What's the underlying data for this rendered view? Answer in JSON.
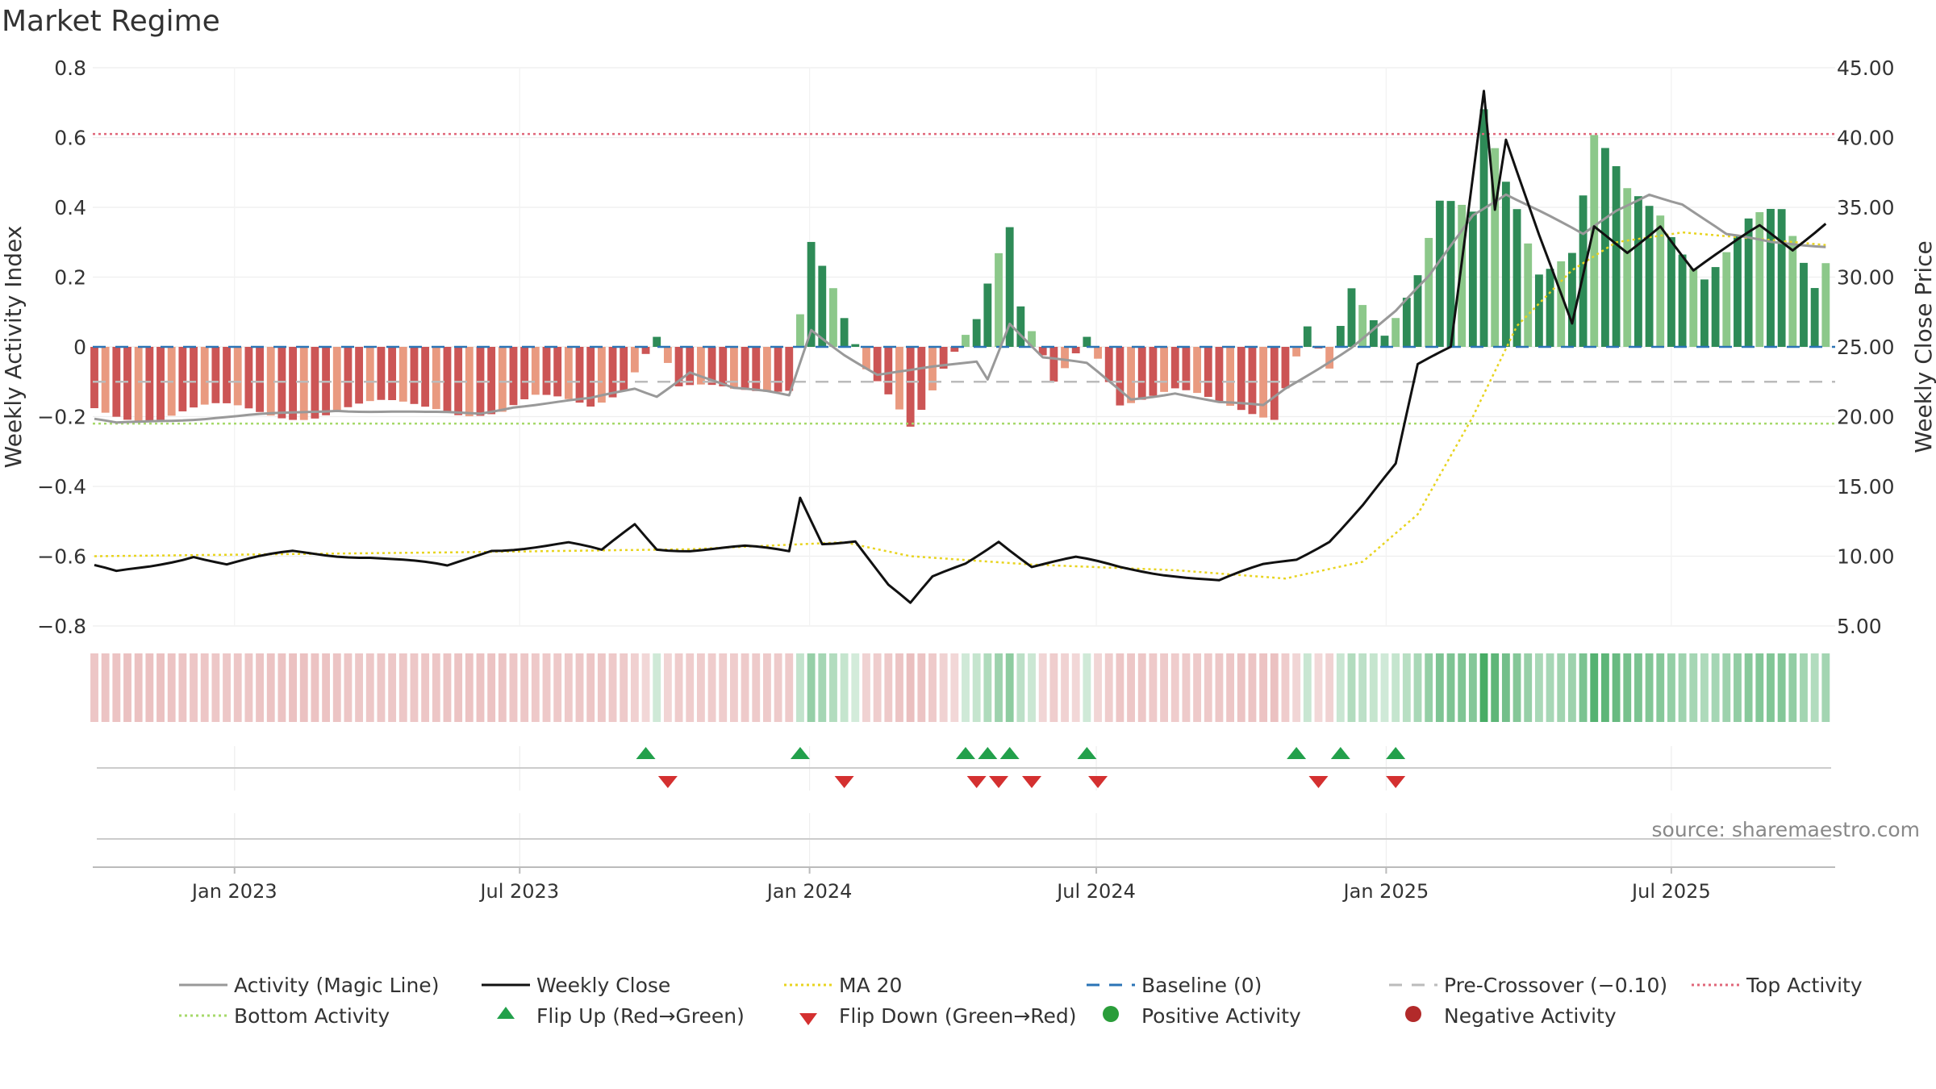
{
  "title": "Market Regime",
  "source": "source: sharemaestro.com",
  "colors": {
    "activity": "#999999",
    "close": "#111111",
    "ma": "#e8d420",
    "baseline": "#2b74b6",
    "precross": "#bbbbbb",
    "top": "#e0677a",
    "bottom": "#a6d96a",
    "pos_strong": "#2e8b57",
    "pos_light": "#8cc88a",
    "neg_strong": "#cc5555",
    "neg_light": "#e99a80",
    "flip_up": "#22a04b",
    "flip_down": "#d43030",
    "pos_dot": "#2a9d3a",
    "neg_dot": "#b22a2a"
  },
  "legend": [
    {
      "label": "Activity (Magic Line)",
      "icon": "solid-gray-line"
    },
    {
      "label": "Weekly Close",
      "icon": "solid-black-line"
    },
    {
      "label": "MA 20",
      "icon": "dotted-yellow-line"
    },
    {
      "label": "Baseline (0)",
      "icon": "dashed-blue-line"
    },
    {
      "label": "Pre-Crossover (−0.10)",
      "icon": "dashed-gray-line"
    },
    {
      "label": "Top Activity",
      "icon": "dotted-pink-line"
    },
    {
      "label": "Bottom Activity",
      "icon": "dotted-green-line"
    },
    {
      "label": "Flip Up (Red→Green)",
      "icon": "green-triangle-up"
    },
    {
      "label": "Flip Down (Green→Red)",
      "icon": "red-triangle-down"
    },
    {
      "label": "Positive Activity",
      "icon": "green-dot"
    },
    {
      "label": "Negative Activity",
      "icon": "red-dot"
    }
  ],
  "chart_data": {
    "type": "bar",
    "title": "Market Regime",
    "ylabel": "Weekly Activity Index",
    "y2label": "Weekly Close Price",
    "ylim": [
      -0.8,
      0.8
    ],
    "y2lim": [
      5,
      45
    ],
    "yticks": [
      "0.8",
      "0.6",
      "0.4",
      "0.2",
      "0",
      "−0.2",
      "−0.4",
      "−0.6",
      "−0.8"
    ],
    "ytick_values": [
      0.8,
      0.6,
      0.4,
      0.2,
      0,
      -0.2,
      -0.4,
      -0.6,
      -0.8
    ],
    "y2ticks": [
      "45.00",
      "40.00",
      "35.00",
      "30.00",
      "25.00",
      "20.00",
      "15.00",
      "10.00",
      "5.00"
    ],
    "y2tick_values": [
      45,
      40,
      35,
      30,
      25,
      20,
      15,
      10,
      5
    ],
    "x_start": "2022-10-03",
    "x_end": "2025-10-13",
    "xticks": [
      {
        "label": "Jan 2023",
        "date": "2023-01-01"
      },
      {
        "label": "Jul 2023",
        "date": "2023-07-01"
      },
      {
        "label": "Jan 2024",
        "date": "2024-01-01"
      },
      {
        "label": "Jul 2024",
        "date": "2024-07-01"
      },
      {
        "label": "Jan 2025",
        "date": "2025-01-01"
      },
      {
        "label": "Jul 2025",
        "date": "2025-07-01"
      }
    ],
    "reference_lines": {
      "top_activity": 0.61,
      "bottom_activity": -0.22,
      "pre_crossover": -0.1,
      "baseline": 0
    },
    "activity_keypoints": [
      [
        "2022-10-03",
        -0.21
      ],
      [
        "2022-10-17",
        -0.22
      ],
      [
        "2022-11-14",
        -0.21
      ],
      [
        "2023-01-02",
        -0.2
      ],
      [
        "2023-02-06",
        -0.19
      ],
      [
        "2023-03-06",
        -0.18
      ],
      [
        "2023-05-01",
        -0.19
      ],
      [
        "2023-06-05",
        -0.19
      ],
      [
        "2023-06-26",
        -0.17
      ],
      [
        "2023-08-14",
        -0.15
      ],
      [
        "2023-09-11",
        -0.12
      ],
      [
        "2023-09-25",
        -0.14
      ],
      [
        "2023-10-16",
        -0.07
      ],
      [
        "2023-11-13",
        -0.12
      ],
      [
        "2023-12-04",
        -0.13
      ],
      [
        "2023-12-18",
        -0.14
      ],
      [
        "2024-01-01",
        0.05
      ],
      [
        "2024-01-22",
        -0.02
      ],
      [
        "2024-02-12",
        -0.08
      ],
      [
        "2024-03-04",
        -0.07
      ],
      [
        "2024-04-15",
        -0.04
      ],
      [
        "2024-04-22",
        -0.09
      ],
      [
        "2024-05-06",
        0.07
      ],
      [
        "2024-05-27",
        -0.03
      ],
      [
        "2024-06-24",
        -0.05
      ],
      [
        "2024-07-22",
        -0.15
      ],
      [
        "2024-08-19",
        -0.13
      ],
      [
        "2024-09-16",
        -0.16
      ],
      [
        "2024-10-14",
        -0.17
      ],
      [
        "2024-10-28",
        -0.12
      ],
      [
        "2024-11-18",
        -0.06
      ],
      [
        "2024-12-09",
        0.0
      ],
      [
        "2025-01-06",
        0.1
      ],
      [
        "2025-01-27",
        0.2
      ],
      [
        "2025-02-24",
        0.38
      ],
      [
        "2025-03-17",
        0.44
      ],
      [
        "2025-04-07",
        0.39
      ],
      [
        "2025-05-05",
        0.32
      ],
      [
        "2025-05-26",
        0.39
      ],
      [
        "2025-06-16",
        0.44
      ],
      [
        "2025-07-07",
        0.41
      ],
      [
        "2025-08-04",
        0.32
      ],
      [
        "2025-09-01",
        0.3
      ],
      [
        "2025-10-06",
        0.29
      ]
    ],
    "close_keypoints": [
      [
        "2022-10-03",
        9.2
      ],
      [
        "2022-10-17",
        8.8
      ],
      [
        "2022-11-07",
        9.3
      ],
      [
        "2022-12-05",
        10.1
      ],
      [
        "2022-12-26",
        9.4
      ],
      [
        "2023-02-06",
        10.3
      ],
      [
        "2023-03-27",
        10.0
      ],
      [
        "2023-05-15",
        9.2
      ],
      [
        "2023-06-12",
        10.5
      ],
      [
        "2023-07-31",
        10.9
      ],
      [
        "2023-08-21",
        10.3
      ],
      [
        "2023-09-11",
        12.3
      ],
      [
        "2023-09-25",
        10.6
      ],
      [
        "2023-10-16",
        10.5
      ],
      [
        "2023-11-20",
        10.6
      ],
      [
        "2023-12-18",
        10.3
      ],
      [
        "2023-12-25",
        14.2
      ],
      [
        "2024-01-08",
        11.0
      ],
      [
        "2024-01-29",
        11.2
      ],
      [
        "2024-02-19",
        7.9
      ],
      [
        "2024-03-04",
        6.5
      ],
      [
        "2024-03-18",
        8.4
      ],
      [
        "2024-04-08",
        9.5
      ],
      [
        "2024-04-29",
        11.2
      ],
      [
        "2024-05-20",
        9.3
      ],
      [
        "2024-06-17",
        9.8
      ],
      [
        "2024-07-15",
        9.2
      ],
      [
        "2024-08-19",
        8.7
      ],
      [
        "2024-09-16",
        8.2
      ],
      [
        "2024-10-14",
        9.3
      ],
      [
        "2024-11-04",
        9.8
      ],
      [
        "2024-11-25",
        11.2
      ],
      [
        "2024-12-16",
        13.7
      ],
      [
        "2025-01-06",
        16.5
      ],
      [
        "2025-01-20",
        23.6
      ],
      [
        "2025-02-10",
        25.0
      ],
      [
        "2025-03-03",
        43.5
      ],
      [
        "2025-03-10",
        35.0
      ],
      [
        "2025-03-17",
        40.0
      ],
      [
        "2025-04-07",
        33.0
      ],
      [
        "2025-04-28",
        26.5
      ],
      [
        "2025-05-12",
        33.5
      ],
      [
        "2025-06-02",
        31.8
      ],
      [
        "2025-06-23",
        33.8
      ],
      [
        "2025-07-14",
        30.5
      ],
      [
        "2025-08-04",
        32.0
      ],
      [
        "2025-08-25",
        33.6
      ],
      [
        "2025-09-15",
        32.0
      ],
      [
        "2025-10-06",
        34.0
      ]
    ],
    "ma_keypoints": [
      [
        "2022-10-03",
        10.0
      ],
      [
        "2023-06-05",
        10.3
      ],
      [
        "2023-10-16",
        10.5
      ],
      [
        "2024-01-22",
        11.0
      ],
      [
        "2024-03-04",
        10.0
      ],
      [
        "2024-05-20",
        9.4
      ],
      [
        "2024-08-19",
        9.0
      ],
      [
        "2024-10-28",
        8.4
      ],
      [
        "2024-12-16",
        9.6
      ],
      [
        "2025-01-20",
        13.0
      ],
      [
        "2025-02-24",
        20.0
      ],
      [
        "2025-03-24",
        26.5
      ],
      [
        "2025-04-28",
        30.5
      ],
      [
        "2025-05-26",
        32.5
      ],
      [
        "2025-07-07",
        33.2
      ],
      [
        "2025-08-18",
        32.8
      ],
      [
        "2025-10-06",
        32.3
      ]
    ],
    "activity_bar_keypoints": [
      [
        "2022-10-03",
        -0.19
      ],
      [
        "2022-11-14",
        -0.21
      ],
      [
        "2022-12-26",
        -0.2
      ],
      [
        "2023-02-20",
        -0.2
      ],
      [
        "2023-04-03",
        -0.19
      ],
      [
        "2023-05-08",
        -0.18
      ],
      [
        "2023-06-19",
        -0.2
      ],
      [
        "2023-07-10",
        -0.17
      ],
      [
        "2023-08-14",
        -0.18
      ],
      [
        "2023-09-04",
        -0.12
      ],
      [
        "2023-09-25",
        0.03
      ],
      [
        "2023-10-09",
        -0.13
      ],
      [
        "2023-11-13",
        -0.14
      ],
      [
        "2023-12-18",
        -0.12
      ],
      [
        "2024-01-01",
        0.3
      ],
      [
        "2024-01-15",
        0.19
      ],
      [
        "2024-02-05",
        -0.08
      ],
      [
        "2024-03-04",
        -0.25
      ],
      [
        "2024-03-25",
        -0.06
      ],
      [
        "2024-04-15",
        0.08
      ],
      [
        "2024-05-06",
        0.42
      ],
      [
        "2024-05-13",
        0.15
      ],
      [
        "2024-06-03",
        -0.12
      ],
      [
        "2024-06-24",
        0.03
      ],
      [
        "2024-07-15",
        -0.16
      ],
      [
        "2024-08-19",
        -0.14
      ],
      [
        "2024-09-16",
        -0.19
      ],
      [
        "2024-10-21",
        -0.2
      ],
      [
        "2024-11-11",
        0.06
      ],
      [
        "2024-11-25",
        -0.07
      ],
      [
        "2024-12-09",
        0.22
      ],
      [
        "2024-12-30",
        0.04
      ],
      [
        "2025-01-20",
        0.21
      ],
      [
        "2025-02-03",
        0.4
      ],
      [
        "2025-02-24",
        0.4
      ],
      [
        "2025-03-03",
        0.75
      ],
      [
        "2025-03-24",
        0.52
      ],
      [
        "2025-04-07",
        0.27
      ],
      [
        "2025-04-28",
        0.29
      ],
      [
        "2025-05-12",
        0.59
      ],
      [
        "2025-06-02",
        0.45
      ],
      [
        "2025-06-23",
        0.45
      ],
      [
        "2025-07-21",
        0.25
      ],
      [
        "2025-08-18",
        0.37
      ],
      [
        "2025-09-08",
        0.38
      ],
      [
        "2025-09-29",
        0.19
      ],
      [
        "2025-10-06",
        0.29
      ]
    ],
    "flip_up_dates": [
      "2023-09-18",
      "2023-12-25",
      "2024-04-08",
      "2024-04-22",
      "2024-05-06",
      "2024-06-24",
      "2024-11-04",
      "2024-12-02",
      "2025-01-06"
    ],
    "flip_down_dates": [
      "2023-10-02",
      "2024-01-22",
      "2024-04-15",
      "2024-04-29",
      "2024-05-20",
      "2024-07-01",
      "2024-11-18",
      "2025-01-06"
    ]
  }
}
